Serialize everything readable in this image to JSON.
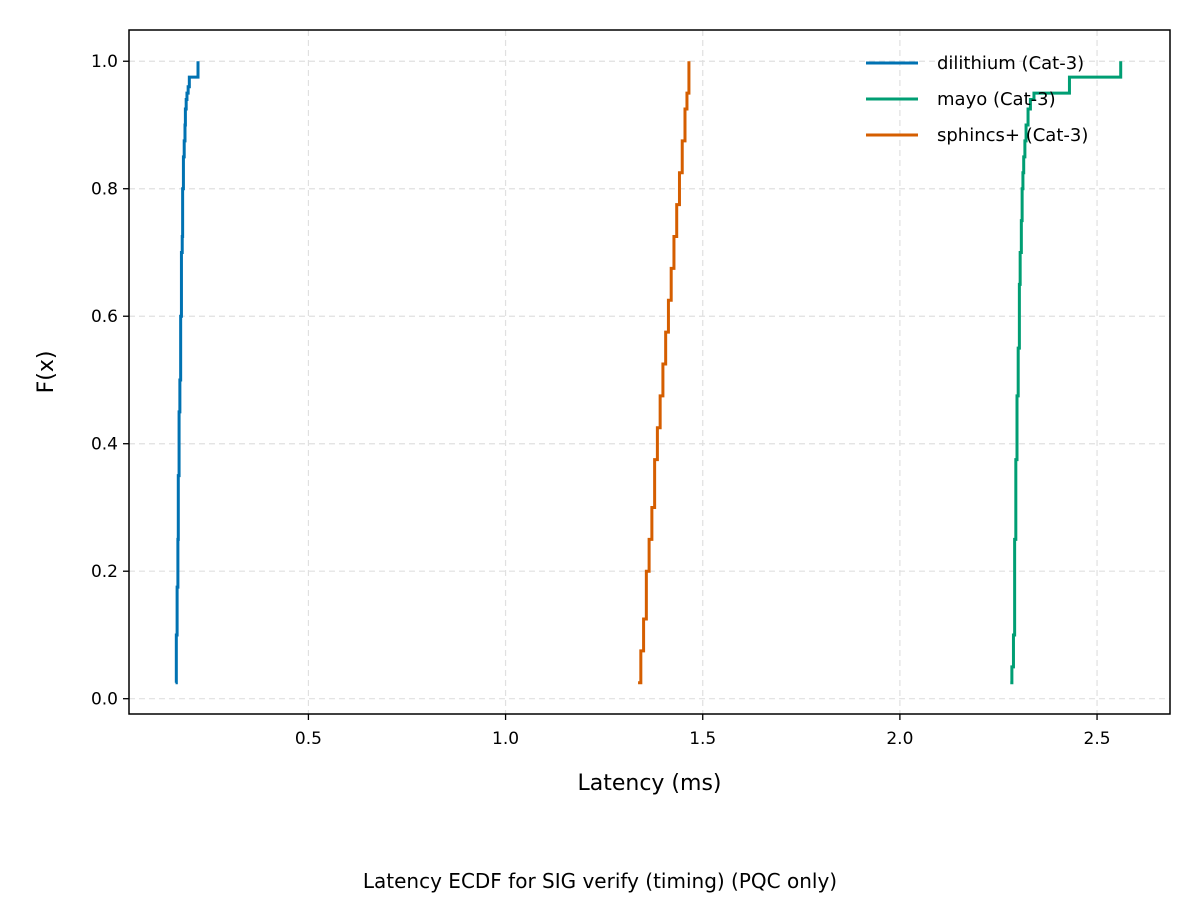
{
  "chart_data": {
    "type": "line",
    "subtype": "ecdf-step",
    "caption": "Latency ECDF for SIG verify (timing) (PQC only)",
    "xlabel": "Latency (ms)",
    "ylabel": "F(x)",
    "xlim": [
      0.045,
      2.685
    ],
    "ylim": [
      -0.024,
      1.049
    ],
    "xticks": [
      0.5,
      1.0,
      1.5,
      2.0,
      2.5
    ],
    "xtick_labels": [
      "0.5",
      "1.0",
      "1.5",
      "2.0",
      "2.5"
    ],
    "yticks": [
      0.0,
      0.2,
      0.4,
      0.6,
      0.8,
      1.0
    ],
    "ytick_labels": [
      "0.0",
      "0.2",
      "0.4",
      "0.6",
      "0.8",
      "1.0"
    ],
    "grid": true,
    "legend_position": "top-right",
    "series": [
      {
        "name": "dilithium (Cat-3)",
        "color": "#0072b2",
        "x": [
          0.163,
          0.165,
          0.167,
          0.169,
          0.17,
          0.172,
          0.174,
          0.176,
          0.178,
          0.18,
          0.181,
          0.183,
          0.185,
          0.187,
          0.188,
          0.19,
          0.192,
          0.195,
          0.198,
          0.22
        ],
        "y": [
          0.025,
          0.1,
          0.175,
          0.25,
          0.35,
          0.45,
          0.5,
          0.6,
          0.7,
          0.725,
          0.8,
          0.85,
          0.875,
          0.9,
          0.925,
          0.94,
          0.95,
          0.96,
          0.975,
          1.0
        ]
      },
      {
        "name": "mayo (Cat-3)",
        "color": "#009e73",
        "x": [
          2.28,
          2.284,
          2.288,
          2.291,
          2.294,
          2.297,
          2.3,
          2.303,
          2.305,
          2.308,
          2.31,
          2.312,
          2.314,
          2.317,
          2.32,
          2.325,
          2.331,
          2.34,
          2.38,
          2.43,
          2.56
        ],
        "y": [
          0.025,
          0.05,
          0.1,
          0.25,
          0.375,
          0.475,
          0.55,
          0.65,
          0.7,
          0.75,
          0.8,
          0.825,
          0.85,
          0.875,
          0.9,
          0.925,
          0.94,
          0.95,
          0.95,
          0.975,
          1.0
        ]
      },
      {
        "name": "sphincs+ (Cat-3)",
        "color": "#d55e00",
        "x": [
          1.336,
          1.343,
          1.35,
          1.357,
          1.364,
          1.371,
          1.378,
          1.385,
          1.392,
          1.399,
          1.406,
          1.413,
          1.42,
          1.427,
          1.434,
          1.441,
          1.448,
          1.455,
          1.46,
          1.465
        ],
        "y": [
          0.025,
          0.075,
          0.125,
          0.2,
          0.25,
          0.3,
          0.375,
          0.425,
          0.475,
          0.525,
          0.575,
          0.625,
          0.675,
          0.725,
          0.775,
          0.825,
          0.875,
          0.925,
          0.95,
          1.0
        ]
      }
    ]
  }
}
